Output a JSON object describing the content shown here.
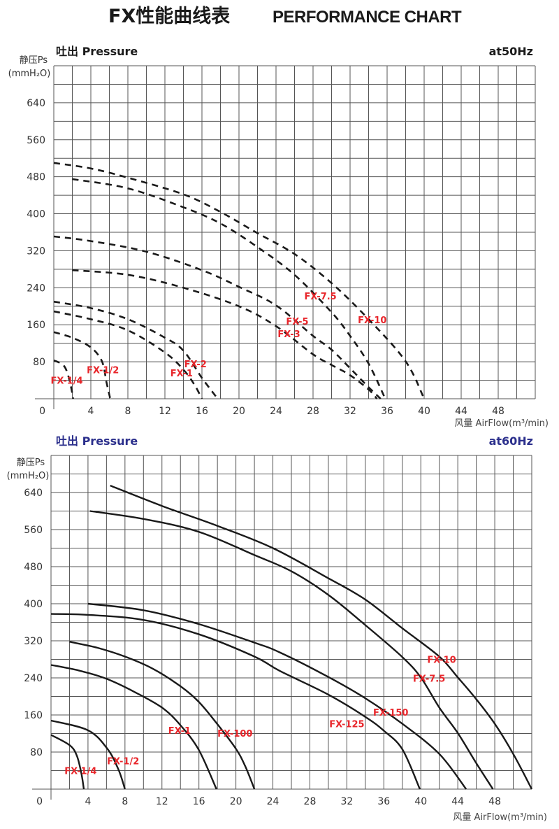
{
  "header": {
    "title_cn": "FX性能曲线表",
    "title_en": "PERFORMANCE CHART"
  },
  "colors": {
    "curve": "#1a1a1a",
    "label": "#e8262b",
    "grid": "#555555",
    "header50": "#1a1a1a",
    "header60": "#2b2f8c"
  },
  "chart_data": [
    {
      "type": "line",
      "title": "吐出 Pressure",
      "frequency": "at50Hz",
      "ylabel": "静压Ps",
      "yunit": "(mmH₂O)",
      "xlabel": "风量 AirFlow(m³/min)",
      "origin_label": "0",
      "xlim": [
        0,
        52
      ],
      "ylim": [
        0,
        720
      ],
      "grid": true,
      "grid_step_x": 2,
      "grid_step_y": 40,
      "xticks": [
        4,
        8,
        12,
        16,
        20,
        24,
        28,
        32,
        36,
        40,
        44,
        48
      ],
      "yticks": [
        80,
        160,
        240,
        320,
        400,
        480,
        560,
        640
      ],
      "line_style": "dashed",
      "series": [
        {
          "name": "FX-1/4",
          "label_at": [
            1.4,
            40
          ],
          "points": [
            [
              0,
              83
            ],
            [
              1.1,
              71
            ],
            [
              1.7,
              40
            ],
            [
              2.1,
              0
            ]
          ]
        },
        {
          "name": "FX-1/2",
          "label_at": [
            5.3,
            63
          ],
          "points": [
            [
              0,
              144
            ],
            [
              2,
              132
            ],
            [
              4,
              111
            ],
            [
              5.2,
              81
            ],
            [
              5.7,
              35
            ],
            [
              6.1,
              0
            ]
          ]
        },
        {
          "name": "FX-1",
          "label_at": [
            13.8,
            56
          ],
          "points": [
            [
              0,
              189
            ],
            [
              4,
              172
            ],
            [
              8,
              148
            ],
            [
              12,
              100
            ],
            [
              14,
              63
            ],
            [
              15.2,
              30
            ],
            [
              16,
              0
            ]
          ]
        },
        {
          "name": "FX-2",
          "label_at": [
            15.3,
            76
          ],
          "points": [
            [
              0,
              210
            ],
            [
              4,
              196
            ],
            [
              8,
              172
            ],
            [
              12,
              132
            ],
            [
              14,
              104
            ],
            [
              16,
              45
            ],
            [
              17.7,
              0
            ]
          ]
        },
        {
          "name": "FX-3",
          "label_at": [
            25.4,
            141
          ],
          "points": [
            [
              2,
              278
            ],
            [
              8,
              268
            ],
            [
              14,
              240
            ],
            [
              20,
              200
            ],
            [
              24,
              157
            ],
            [
              28,
              96
            ],
            [
              30,
              73
            ],
            [
              32,
              51
            ],
            [
              34,
              20
            ],
            [
              34.9,
              0
            ]
          ]
        },
        {
          "name": "FX-5",
          "label_at": [
            26.3,
            168
          ],
          "points": [
            [
              0,
              351
            ],
            [
              4,
              341
            ],
            [
              10,
              318
            ],
            [
              16,
              278
            ],
            [
              20,
              242
            ],
            [
              24,
              202
            ],
            [
              28,
              136
            ],
            [
              30,
              106
            ],
            [
              32,
              66
            ],
            [
              34,
              25
            ],
            [
              35.3,
              0
            ]
          ]
        },
        {
          "name": "FX-7.5",
          "label_at": [
            28.8,
            222
          ],
          "points": [
            [
              2,
              475
            ],
            [
              8,
              455
            ],
            [
              14,
              414
            ],
            [
              18,
              379
            ],
            [
              22,
              328
            ],
            [
              26,
              268
            ],
            [
              30,
              187
            ],
            [
              32,
              136
            ],
            [
              34,
              76
            ],
            [
              35.8,
              0
            ]
          ]
        },
        {
          "name": "FX-10",
          "label_at": [
            34.4,
            171
          ],
          "points": [
            [
              0,
              510
            ],
            [
              4,
              498
            ],
            [
              8,
              478
            ],
            [
              14,
              442
            ],
            [
              18,
              404
            ],
            [
              22,
              358
            ],
            [
              26,
              313
            ],
            [
              30,
              250
            ],
            [
              34,
              172
            ],
            [
              38,
              81
            ],
            [
              40,
              0
            ]
          ]
        }
      ]
    },
    {
      "type": "line",
      "title": "吐出 Pressure",
      "frequency": "at60Hz",
      "ylabel": "静压Ps",
      "yunit": "(mmH₂O)",
      "xlabel": "风量 AirFlow(m³/min)",
      "origin_label": "0",
      "xlim": [
        0,
        52
      ],
      "ylim": [
        0,
        720
      ],
      "grid": true,
      "grid_step_x": 2,
      "grid_step_y": 40,
      "xticks": [
        4,
        8,
        12,
        16,
        20,
        24,
        28,
        32,
        36,
        40,
        44,
        48
      ],
      "yticks": [
        80,
        160,
        240,
        320,
        400,
        480,
        560,
        640
      ],
      "line_style": "solid",
      "series": [
        {
          "name": "FX-1/4",
          "label_at": [
            3.2,
            40
          ],
          "points": [
            [
              0,
              117
            ],
            [
              2,
              95
            ],
            [
              2.8,
              72
            ],
            [
              3.3,
              32
            ],
            [
              3.55,
              0
            ]
          ]
        },
        {
          "name": "FX-1/2",
          "label_at": [
            7.8,
            61
          ],
          "points": [
            [
              0,
              148
            ],
            [
              4,
              127
            ],
            [
              6.1,
              87
            ],
            [
              7.3,
              42
            ],
            [
              8,
              0
            ]
          ]
        },
        {
          "name": "FX-1",
          "label_at": [
            13.9,
            127
          ],
          "points": [
            [
              0,
              268
            ],
            [
              3,
              256
            ],
            [
              6,
              238
            ],
            [
              9,
              210
            ],
            [
              12,
              176
            ],
            [
              14,
              138
            ],
            [
              16,
              84
            ],
            [
              17.9,
              0
            ]
          ]
        },
        {
          "name": "FX-100",
          "label_at": [
            19.9,
            121
          ],
          "points": [
            [
              2,
              318
            ],
            [
              5,
              305
            ],
            [
              8,
              286
            ],
            [
              11,
              260
            ],
            [
              14,
              222
            ],
            [
              16,
              188
            ],
            [
              18,
              140
            ],
            [
              20,
              87
            ],
            [
              21,
              50
            ],
            [
              22,
              0
            ]
          ]
        },
        {
          "name": "FX-125",
          "label_at": [
            32,
            141
          ],
          "points": [
            [
              0,
              378
            ],
            [
              4,
              376
            ],
            [
              10,
              365
            ],
            [
              16,
              334
            ],
            [
              22,
              286
            ],
            [
              24.75,
              255
            ],
            [
              30,
              204
            ],
            [
              34,
              156
            ],
            [
              36,
              126
            ],
            [
              38,
              86
            ],
            [
              39.9,
              0
            ]
          ]
        },
        {
          "name": "FX-150",
          "label_at": [
            36.75,
            166
          ],
          "points": [
            [
              4,
              400
            ],
            [
              10,
              386
            ],
            [
              16,
              356
            ],
            [
              22,
              316
            ],
            [
              24.75,
              295
            ],
            [
              30,
              242
            ],
            [
              34,
              196
            ],
            [
              38,
              141
            ],
            [
              42,
              76
            ],
            [
              44.9,
              0
            ]
          ]
        },
        {
          "name": "FX-7.5",
          "label_at": [
            40.9,
            239
          ],
          "points": [
            [
              4.2,
              600
            ],
            [
              10,
              583
            ],
            [
              16,
              555
            ],
            [
              22,
              505
            ],
            [
              26,
              470
            ],
            [
              30,
              419
            ],
            [
              34,
              354
            ],
            [
              38,
              285
            ],
            [
              40,
              241
            ],
            [
              42,
              176
            ],
            [
              44,
              121
            ],
            [
              46,
              56
            ],
            [
              47.8,
              0
            ]
          ]
        },
        {
          "name": "FX-10",
          "label_at": [
            42.25,
            280
          ],
          "points": [
            [
              6.4,
              655
            ],
            [
              12,
              611
            ],
            [
              18,
              568
            ],
            [
              24,
              520
            ],
            [
              30,
              455
            ],
            [
              34,
              409
            ],
            [
              38,
              347
            ],
            [
              42,
              286
            ],
            [
              44,
              241
            ],
            [
              46,
              194
            ],
            [
              48,
              141
            ],
            [
              50,
              76
            ],
            [
              52,
              0
            ]
          ]
        }
      ]
    }
  ]
}
